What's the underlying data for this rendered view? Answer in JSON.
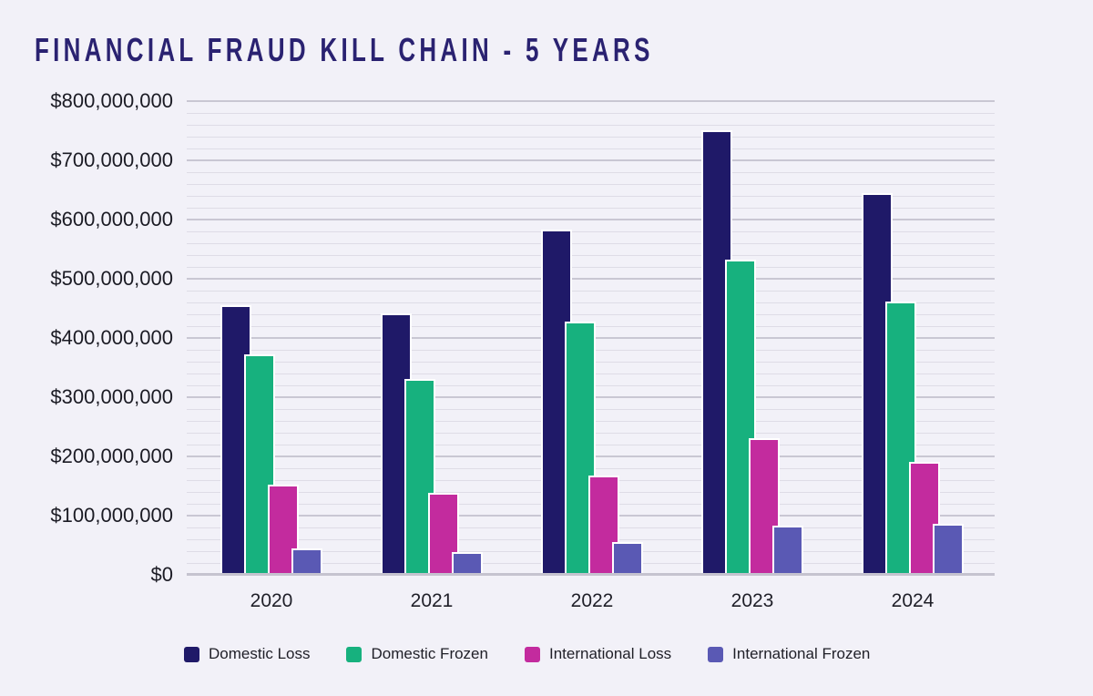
{
  "page": {
    "title": "FINANCIAL FRAUD KILL CHAIN - 5 YEARS"
  },
  "chart_data": {
    "type": "bar",
    "title": "FINANCIAL FRAUD KILL CHAIN - 5 YEARS",
    "categories": [
      "2020",
      "2021",
      "2022",
      "2023",
      "2024"
    ],
    "series": [
      {
        "name": "Domestic Loss",
        "color": "#1f1968",
        "values": [
          455000000,
          442000000,
          583000000,
          750000000,
          645000000
        ]
      },
      {
        "name": "Domestic Frozen",
        "color": "#17b17e",
        "values": [
          372000000,
          330000000,
          428000000,
          532000000,
          462000000
        ]
      },
      {
        "name": "International Loss",
        "color": "#c32b9e",
        "values": [
          153000000,
          139000000,
          168000000,
          231000000,
          191000000
        ]
      },
      {
        "name": "International Frozen",
        "color": "#5a59b4",
        "values": [
          45000000,
          38000000,
          55000000,
          83000000,
          86000000
        ]
      }
    ],
    "ylim": [
      0,
      800000000
    ],
    "ytick_interval": 100000000,
    "minor_gridline_interval": 20000000,
    "ytick_labels": [
      "$0",
      "$100,000,000",
      "$200,000,000",
      "$300,000,000",
      "$400,000,000",
      "$500,000,000",
      "$600,000,000",
      "$700,000,000",
      "$800,000,000"
    ],
    "grid": true,
    "legend_position": "bottom"
  },
  "colors": {
    "background": "#f2f1f8",
    "title_text": "#2a2271",
    "axis_text": "#1b1b24",
    "gridline_major": "#c9c7d3",
    "gridline_minor": "#dedce6",
    "baseline": "#c5c3cf",
    "bar_stroke": "#ffffff"
  }
}
